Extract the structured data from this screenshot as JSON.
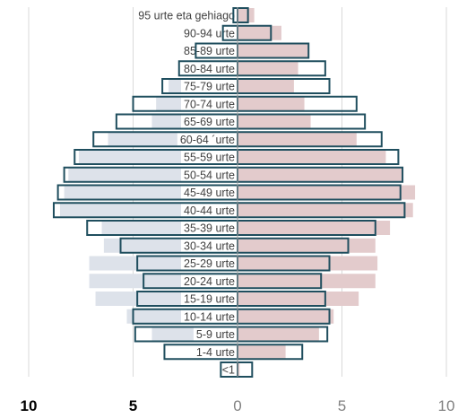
{
  "chart_data": {
    "type": "bar",
    "orientation": "horizontal",
    "layout": "population-pyramid",
    "title": "",
    "xlabel": "",
    "ylabel": "",
    "xlim": [
      -10,
      10
    ],
    "x_ticks": [
      {
        "value": -10,
        "label": "10",
        "bold": true
      },
      {
        "value": -5,
        "label": "5",
        "bold": true
      },
      {
        "value": 0,
        "label": "0",
        "bold": false
      },
      {
        "value": 5,
        "label": "5",
        "bold": false
      },
      {
        "value": 10,
        "label": "10",
        "bold": false
      }
    ],
    "grid": "vertical",
    "legend": "none",
    "categories": [
      "95 urte eta gehiago",
      "90-94 urte",
      "85-89 urte",
      "80-84 urte",
      "75-79 urte",
      "70-74 urte",
      "65-69 urte",
      "60-64 ´urte",
      "55-59 urte",
      "50-54 urte",
      "45-49 urte",
      "40-44 urte",
      "35-39 urte",
      "30-34 urte",
      "25-29 urte",
      "20-24 urte",
      "15-19 urte",
      "10-14 urte",
      "5-9 urte",
      "1-4 urte",
      "<1"
    ],
    "series": [
      {
        "side": "left",
        "style": "filled",
        "values": [
          0.1,
          0.3,
          1.1,
          2.0,
          3.3,
          3.9,
          4.1,
          6.2,
          7.6,
          8.1,
          8.3,
          8.5,
          6.5,
          6.4,
          7.1,
          7.1,
          6.8,
          5.3,
          4.1,
          1.9,
          0.4
        ]
      },
      {
        "side": "right",
        "style": "filled",
        "values": [
          0.8,
          2.1,
          3.4,
          2.9,
          2.7,
          3.2,
          3.5,
          5.7,
          7.1,
          7.9,
          8.5,
          8.4,
          7.3,
          6.6,
          6.7,
          6.6,
          5.8,
          4.6,
          3.9,
          2.3,
          0.1
        ]
      },
      {
        "side": "left",
        "style": "outline",
        "values": [
          0.2,
          0.7,
          2.0,
          2.8,
          3.6,
          5.0,
          5.8,
          6.9,
          7.8,
          8.3,
          8.6,
          8.8,
          7.2,
          5.6,
          4.8,
          4.5,
          4.8,
          5.0,
          4.9,
          3.5,
          0.8
        ]
      },
      {
        "side": "right",
        "style": "outline",
        "values": [
          0.5,
          1.6,
          3.4,
          4.2,
          4.4,
          5.7,
          6.1,
          6.9,
          7.7,
          7.9,
          7.8,
          8.0,
          6.6,
          5.3,
          4.4,
          4.0,
          4.2,
          4.4,
          4.3,
          3.1,
          0.7
        ]
      }
    ],
    "colors": {
      "left_fill": "#dde2ea",
      "right_fill": "#e3cbcc",
      "outline": "#1f4e5e",
      "grid": "#d9d9d9",
      "label_box_fill": "#ffffff",
      "age_label_text": "#404040",
      "tick_text_bold": "#000000",
      "tick_text_regular": "#808080"
    }
  }
}
